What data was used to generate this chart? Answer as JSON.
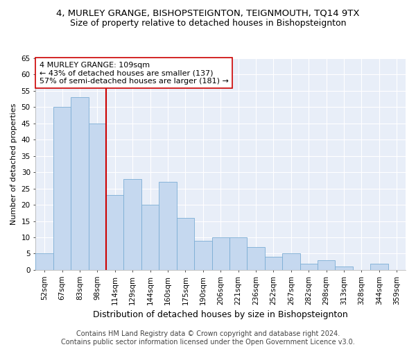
{
  "title": "4, MURLEY GRANGE, BISHOPSTEIGNTON, TEIGNMOUTH, TQ14 9TX",
  "subtitle": "Size of property relative to detached houses in Bishopsteignton",
  "xlabel": "Distribution of detached houses by size in Bishopsteignton",
  "ylabel": "Number of detached properties",
  "categories": [
    "52sqm",
    "67sqm",
    "83sqm",
    "98sqm",
    "114sqm",
    "129sqm",
    "144sqm",
    "160sqm",
    "175sqm",
    "190sqm",
    "206sqm",
    "221sqm",
    "236sqm",
    "252sqm",
    "267sqm",
    "282sqm",
    "298sqm",
    "313sqm",
    "328sqm",
    "344sqm",
    "359sqm"
  ],
  "values": [
    5,
    50,
    53,
    45,
    23,
    28,
    20,
    27,
    16,
    9,
    10,
    10,
    7,
    4,
    5,
    2,
    3,
    1,
    0,
    2,
    0
  ],
  "bar_color": "#c5d8ef",
  "bar_edge_color": "#7badd4",
  "property_line_color": "#cc0000",
  "annotation_text": "4 MURLEY GRANGE: 109sqm\n← 43% of detached houses are smaller (137)\n57% of semi-detached houses are larger (181) →",
  "annotation_box_color": "#ffffff",
  "annotation_box_edge": "#cc0000",
  "ylim": [
    0,
    65
  ],
  "footer": "Contains HM Land Registry data © Crown copyright and database right 2024.\nContains public sector information licensed under the Open Government Licence v3.0.",
  "bg_color": "#e8eef8",
  "grid_color": "#ffffff",
  "fig_bg_color": "#ffffff",
  "title_fontsize": 9.5,
  "subtitle_fontsize": 9,
  "xlabel_fontsize": 9,
  "ylabel_fontsize": 8,
  "tick_fontsize": 7.5,
  "annotation_fontsize": 8,
  "footer_fontsize": 7
}
